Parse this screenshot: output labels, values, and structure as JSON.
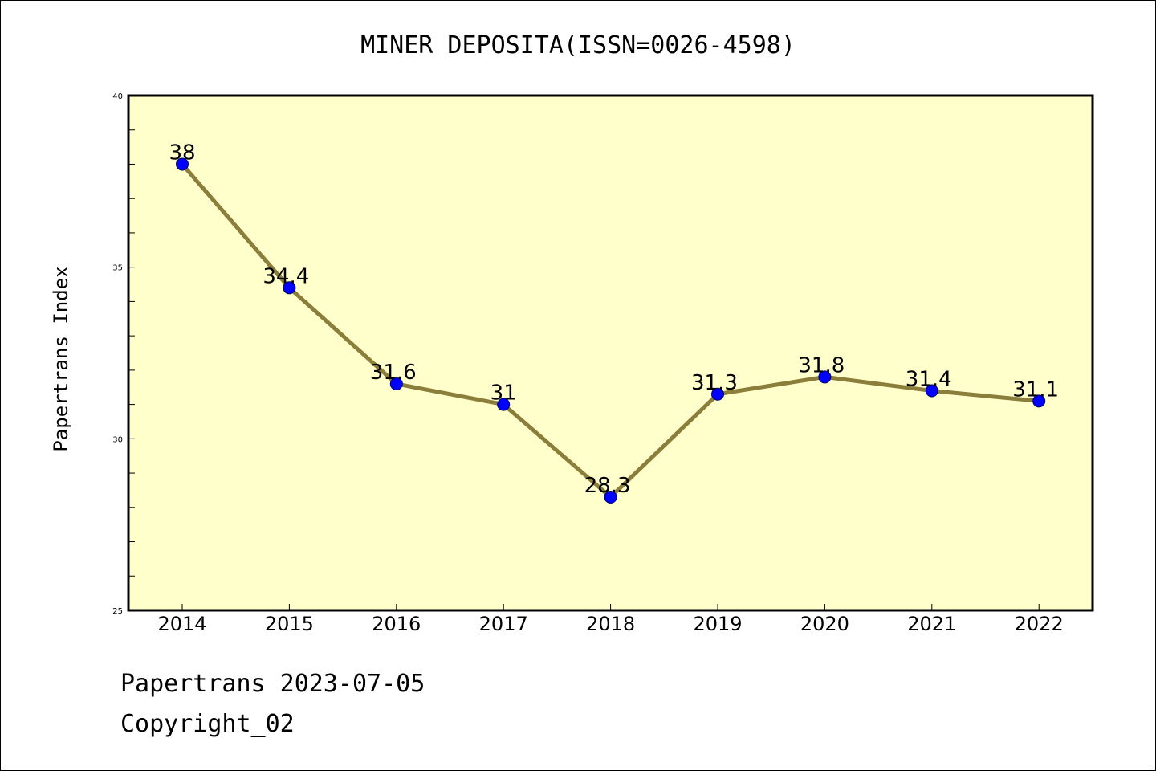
{
  "chart_data": {
    "type": "line",
    "title": "MINER DEPOSITA(ISSN=0026-4598)",
    "xlabel": "",
    "ylabel": "Papertrans Index",
    "x": [
      "2014",
      "2015",
      "2016",
      "2017",
      "2018",
      "2019",
      "2020",
      "2021",
      "2022"
    ],
    "values": [
      38,
      34.4,
      31.6,
      31,
      28.3,
      31.3,
      31.8,
      31.4,
      31.1
    ],
    "data_labels": [
      "38",
      "34.4",
      "31.6",
      "31",
      "28.3",
      "31.3",
      "31.8",
      "31.4",
      "31.1"
    ],
    "ylim": [
      25,
      40
    ],
    "yticks": [
      25,
      30,
      35,
      40
    ],
    "ytick_labels": [
      "25",
      "30",
      "35",
      "40"
    ],
    "grid": false,
    "colors": {
      "plot_background": "#ffffcc",
      "line": "#8b7d3a",
      "marker": "#0000ff"
    }
  },
  "footer": {
    "date_line": "Papertrans 2023-07-05",
    "copyright": "Copyright_02"
  }
}
